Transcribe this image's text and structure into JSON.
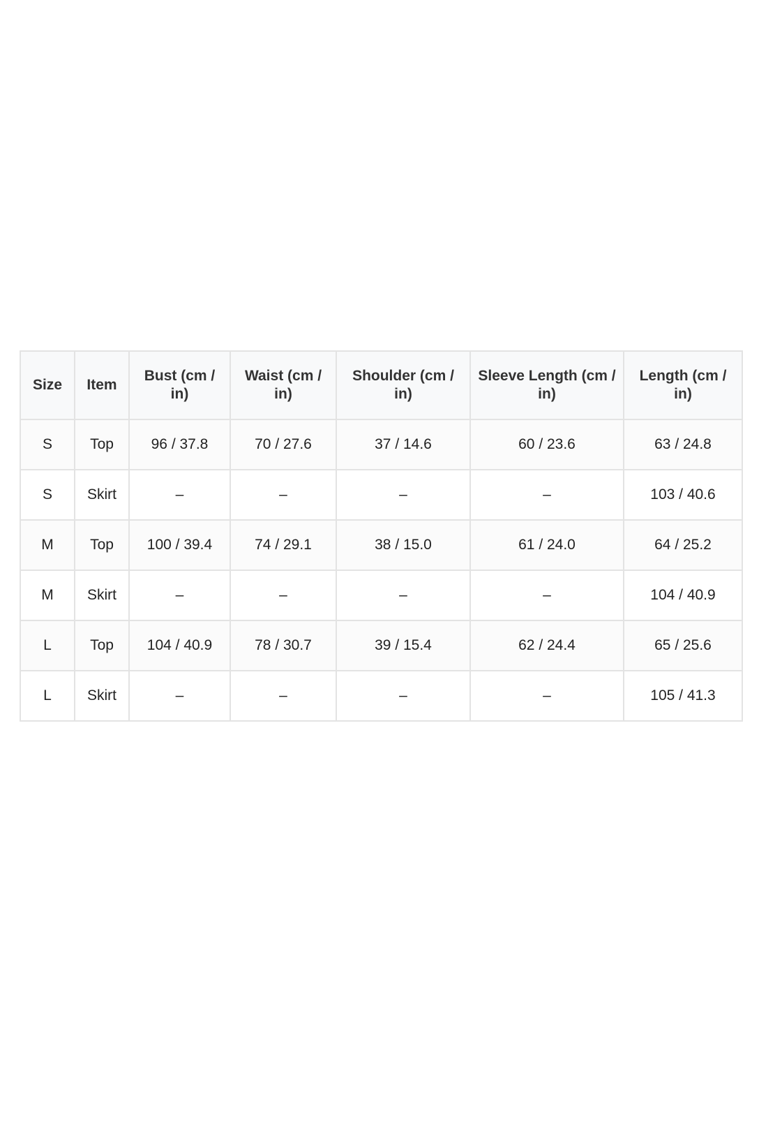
{
  "table": {
    "headers": [
      "Size",
      "Item",
      "Bust (cm / in)",
      "Waist (cm / in)",
      "Shoulder (cm / in)",
      "Sleeve Length (cm / in)",
      "Length (cm / in)"
    ],
    "rows": [
      [
        "S",
        "Top",
        "96 / 37.8",
        "70 / 27.6",
        "37 / 14.6",
        "60 / 23.6",
        "63 / 24.8"
      ],
      [
        "S",
        "Skirt",
        "–",
        "–",
        "–",
        "–",
        "103 / 40.6"
      ],
      [
        "M",
        "Top",
        "100 / 39.4",
        "74 / 29.1",
        "38 / 15.0",
        "61 / 24.0",
        "64 / 25.2"
      ],
      [
        "M",
        "Skirt",
        "–",
        "–",
        "–",
        "–",
        "104 / 40.9"
      ],
      [
        "L",
        "Top",
        "104 / 40.9",
        "78 / 30.7",
        "39 / 15.4",
        "62 / 24.4",
        "65 / 25.6"
      ],
      [
        "L",
        "Skirt",
        "–",
        "–",
        "–",
        "–",
        "105 / 41.3"
      ]
    ]
  }
}
